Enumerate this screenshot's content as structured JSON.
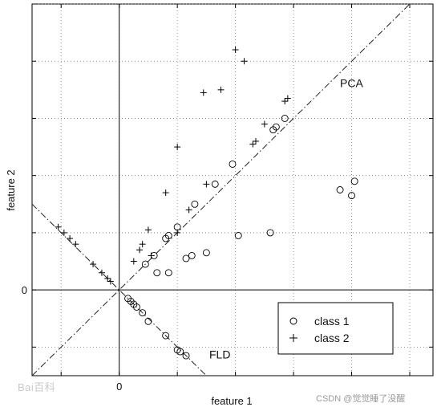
{
  "chart_data": {
    "type": "scatter",
    "xlabel": "feature 1",
    "ylabel": "feature 2",
    "xlim": [
      -1.5,
      5.4
    ],
    "ylim": [
      -1.5,
      5.0
    ],
    "x_ticks": [
      -1,
      0,
      1,
      2,
      3,
      4,
      5
    ],
    "y_ticks": [
      -1,
      0,
      1,
      2,
      3,
      4,
      5
    ],
    "x_tick_labels": [
      "",
      "0",
      "",
      "",
      "",
      "",
      ""
    ],
    "y_tick_labels": [
      "",
      "0",
      "",
      "",
      "",
      "",
      ""
    ],
    "grid": true,
    "series": [
      {
        "name": "class 1",
        "marker": "o",
        "points": [
          [
            0.15,
            -0.15
          ],
          [
            0.2,
            -0.2
          ],
          [
            0.25,
            -0.25
          ],
          [
            0.3,
            -0.3
          ],
          [
            0.4,
            -0.4
          ],
          [
            0.5,
            -0.55
          ],
          [
            0.8,
            -0.8
          ],
          [
            1.0,
            -1.05
          ],
          [
            1.05,
            -1.08
          ],
          [
            1.15,
            -1.15
          ],
          [
            0.45,
            0.45
          ],
          [
            0.6,
            0.6
          ],
          [
            0.8,
            0.9
          ],
          [
            0.85,
            0.95
          ],
          [
            1.0,
            1.1
          ],
          [
            1.3,
            1.5
          ],
          [
            1.65,
            1.85
          ],
          [
            1.95,
            2.2
          ],
          [
            2.65,
            2.8
          ],
          [
            2.7,
            2.85
          ],
          [
            2.85,
            3.0
          ],
          [
            0.65,
            0.3
          ],
          [
            0.85,
            0.3
          ],
          [
            1.15,
            0.55
          ],
          [
            1.25,
            0.6
          ],
          [
            1.5,
            0.65
          ],
          [
            2.05,
            0.95
          ],
          [
            2.6,
            1.0
          ],
          [
            3.8,
            1.75
          ],
          [
            4.0,
            1.65
          ],
          [
            4.05,
            1.9
          ]
        ]
      },
      {
        "name": "class 2",
        "marker": "+",
        "points": [
          [
            -1.05,
            1.1
          ],
          [
            -0.95,
            1.0
          ],
          [
            -0.85,
            0.9
          ],
          [
            -0.75,
            0.8
          ],
          [
            -0.45,
            0.45
          ],
          [
            -0.3,
            0.3
          ],
          [
            -0.2,
            0.2
          ],
          [
            -0.15,
            0.15
          ],
          [
            0.25,
            0.5
          ],
          [
            0.35,
            0.7
          ],
          [
            0.4,
            0.8
          ],
          [
            0.55,
            0.6
          ],
          [
            0.5,
            1.05
          ],
          [
            1.0,
            1.0
          ],
          [
            0.8,
            1.7
          ],
          [
            1.2,
            1.4
          ],
          [
            1.0,
            2.5
          ],
          [
            1.5,
            1.85
          ],
          [
            2.3,
            2.55
          ],
          [
            2.35,
            2.6
          ],
          [
            2.5,
            2.9
          ],
          [
            2.85,
            3.3
          ],
          [
            2.9,
            3.35
          ],
          [
            1.45,
            3.45
          ],
          [
            1.75,
            3.5
          ],
          [
            2.0,
            4.2
          ],
          [
            2.15,
            4.0
          ]
        ]
      }
    ],
    "lines": [
      {
        "name": "PCA",
        "style": "dash-dot",
        "slope": 1,
        "intercept": 0
      },
      {
        "name": "FLD",
        "style": "dash-dot",
        "slope": -1,
        "intercept": 0
      }
    ],
    "annotations": [
      {
        "text": "PCA",
        "x": 3.8,
        "y": 3.55
      },
      {
        "text": "FLD",
        "x": 1.55,
        "y": -1.2
      }
    ],
    "legend": {
      "placement": "bottom-right",
      "entries": [
        "class 1",
        "class 2"
      ]
    }
  },
  "watermarks": {
    "left": "Bai百科",
    "right": "CSDN @觉觉睡了没醒"
  }
}
